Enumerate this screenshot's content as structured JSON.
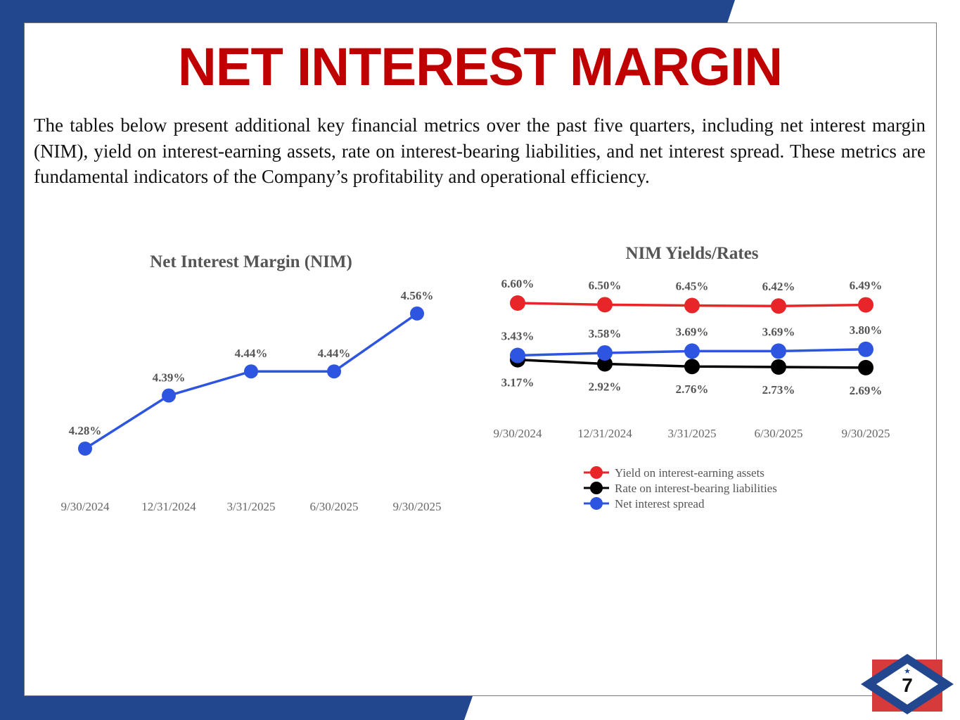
{
  "title": "NET INTEREST MARGIN",
  "intro": "The tables below present additional key financial metrics over the past five quarters, including net interest margin (NIM), yield on interest-earning assets, rate on interest-bearing liabilities, and net interest spread. These metrics are fundamental indicators of the Company’s profitability and operational efficiency.",
  "page_number": "7",
  "colors": {
    "blue_frame": "#22478f",
    "title_red": "#c00000",
    "red": "#e8262a",
    "black": "#000000",
    "blue": "#2e55e0"
  },
  "chart_data": [
    {
      "type": "line",
      "title": "Net Interest Margin (NIM)",
      "categories": [
        "9/30/2024",
        "12/31/2024",
        "3/31/2025",
        "6/30/2025",
        "9/30/2025"
      ],
      "series": [
        {
          "name": "NIM",
          "color": "#2e55e0",
          "values": [
            4.28,
            4.39,
            4.44,
            4.44,
            4.56
          ],
          "labels": [
            "4.28%",
            "4.39%",
            "4.44%",
            "4.44%",
            "4.56%"
          ]
        }
      ],
      "ylabel": "",
      "xlabel": "",
      "grid": false
    },
    {
      "type": "line",
      "title": "NIM Yields/Rates",
      "categories": [
        "9/30/2024",
        "12/31/2024",
        "3/31/2025",
        "6/30/2025",
        "9/30/2025"
      ],
      "series": [
        {
          "name": "Yield on interest-earning assets",
          "color": "#e8262a",
          "values": [
            6.6,
            6.5,
            6.45,
            6.42,
            6.49
          ],
          "labels": [
            "6.60%",
            "6.50%",
            "6.45%",
            "6.42%",
            "6.49%"
          ],
          "label_pos": "above"
        },
        {
          "name": "Rate on interest-bearing liabilities",
          "color": "#000000",
          "values": [
            3.17,
            2.92,
            2.76,
            2.73,
            2.69
          ],
          "labels": [
            "3.17%",
            "2.92%",
            "2.76%",
            "2.73%",
            "2.69%"
          ],
          "label_pos": "below"
        },
        {
          "name": "Net interest spread",
          "color": "#2e55e0",
          "values": [
            3.43,
            3.58,
            3.69,
            3.69,
            3.8
          ],
          "labels": [
            "3.43%",
            "3.58%",
            "3.69%",
            "3.69%",
            "3.80%"
          ],
          "label_pos": "above"
        }
      ],
      "legend": "bottom",
      "grid": false
    }
  ]
}
